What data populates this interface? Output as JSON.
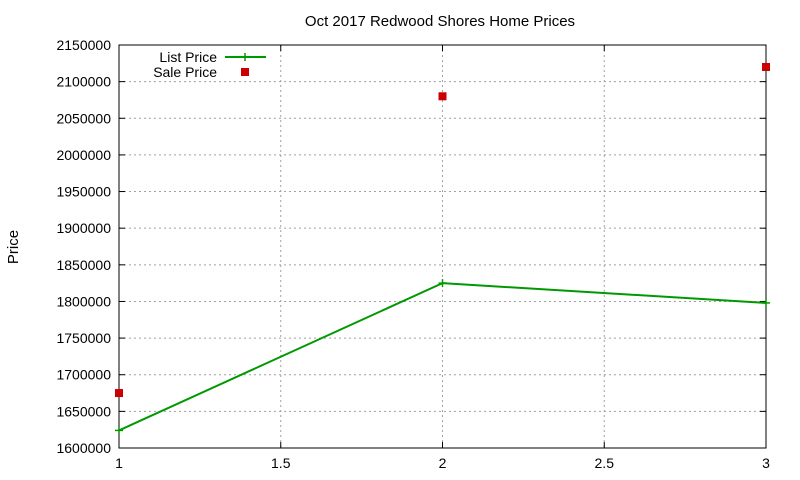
{
  "chart_data": {
    "type": "line",
    "title": "Oct 2017 Redwood Shores Home Prices",
    "xlabel": "",
    "ylabel": "Price",
    "xlim": [
      1,
      3
    ],
    "ylim": [
      1600000,
      2150000
    ],
    "x_ticks": [
      "1",
      "1.5",
      "2",
      "2.5",
      "3"
    ],
    "y_ticks": [
      "1600000",
      "1650000",
      "1700000",
      "1750000",
      "1800000",
      "1850000",
      "1900000",
      "1950000",
      "2000000",
      "2050000",
      "2100000",
      "2150000"
    ],
    "grid": true,
    "legend_position": "top-left",
    "series": [
      {
        "name": "List Price",
        "style": "line-points",
        "color": "#009900",
        "x": [
          1,
          2,
          3
        ],
        "y": [
          1624000,
          1825000,
          1798000
        ]
      },
      {
        "name": "Sale Price",
        "style": "points",
        "color": "#cc0000",
        "x": [
          1,
          2,
          3
        ],
        "y": [
          1675000,
          2080000,
          2120000
        ]
      }
    ]
  }
}
